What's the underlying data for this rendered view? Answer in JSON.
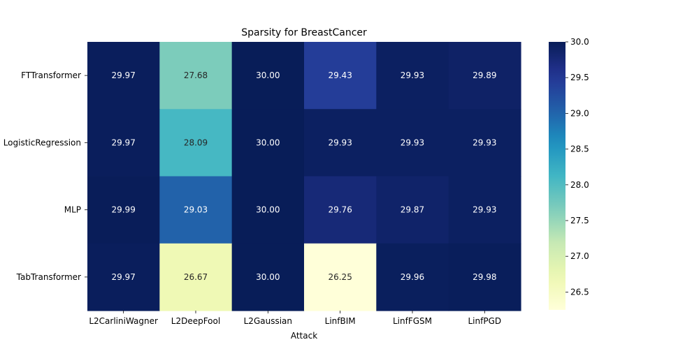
{
  "chart_data": {
    "type": "heatmap",
    "title": "Sparsity for BreastCancer",
    "xlabel": "Attack",
    "ylabel": "",
    "x_categories": [
      "L2CarliniWagner",
      "L2DeepFool",
      "L2Gaussian",
      "LinfBIM",
      "LinfFGSM",
      "LinfPGD"
    ],
    "y_categories": [
      "FTTransformer",
      "LogisticRegression",
      "MLP",
      "TabTransformer"
    ],
    "values": [
      [
        29.97,
        27.68,
        30.0,
        29.43,
        29.93,
        29.89
      ],
      [
        29.97,
        28.09,
        30.0,
        29.93,
        29.93,
        29.93
      ],
      [
        29.99,
        29.03,
        30.0,
        29.76,
        29.87,
        29.93
      ],
      [
        29.97,
        26.67,
        30.0,
        26.25,
        29.96,
        29.98
      ]
    ],
    "cell_labels": [
      [
        "29.97",
        "27.68",
        "30.00",
        "29.43",
        "29.93",
        "29.89"
      ],
      [
        "29.97",
        "28.09",
        "30.00",
        "29.93",
        "29.93",
        "29.93"
      ],
      [
        "29.99",
        "29.03",
        "30.00",
        "29.76",
        "29.87",
        "29.93"
      ],
      [
        "29.97",
        "26.67",
        "30.00",
        "26.25",
        "29.96",
        "29.98"
      ]
    ],
    "colorbar": {
      "colormap": "YlGnBu",
      "vmin": 26.25,
      "vmax": 30.0,
      "tick_values": [
        26.5,
        27.0,
        27.5,
        28.0,
        28.5,
        29.0,
        29.5,
        30.0
      ],
      "tick_labels": [
        "26.5",
        "27.0",
        "27.5",
        "28.0",
        "28.5",
        "29.0",
        "29.5",
        "30.0"
      ]
    }
  }
}
